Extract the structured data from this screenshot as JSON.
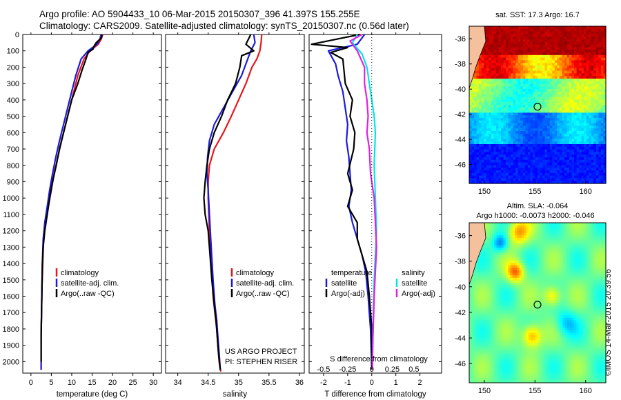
{
  "titles": {
    "line1": "Argo profile: AO 5904433_10 06-Mar-2015 20150307_396 41.397S 155.255E",
    "line2": "Climatology: CARS2009. Satellite-adjusted climatology: synTS_20150307.nc (0.56d later)"
  },
  "side_label": "©IMOS 14-Mar-2015 20:39:56",
  "colors": {
    "climatology": "#e8141a",
    "satellite": "#1a1adc",
    "argo": "#000000",
    "satellite_s": "#00e5e5",
    "argo_s": "#e020e0",
    "land": "#f5c09c"
  },
  "chart_data": [
    {
      "type": "line",
      "id": "temperature",
      "xlabel": "temperature (deg C)",
      "xticks": [
        0,
        5,
        10,
        15,
        20,
        25,
        30
      ],
      "xlim": [
        -2,
        32
      ],
      "ylim": [
        2070,
        0
      ],
      "yticks": [
        0,
        100,
        200,
        300,
        400,
        500,
        600,
        700,
        800,
        900,
        1000,
        1100,
        1200,
        1300,
        1400,
        1500,
        1600,
        1700,
        1800,
        1900,
        2000
      ],
      "legend": [
        "climatology",
        "satellite-adj. clim.",
        "Argo(..raw -QC)"
      ],
      "series": [
        {
          "name": "climatology",
          "color": "#e8141a",
          "x": [
            17.6,
            17.2,
            16.5,
            14.5,
            13.0,
            11.5,
            10.5,
            9.5,
            8.5,
            7.5,
            6.6,
            5.7,
            5.0,
            4.3,
            3.6,
            3.1,
            2.9,
            2.7,
            2.6,
            2.5,
            2.5,
            2.5
          ],
          "y": [
            0,
            30,
            60,
            100,
            150,
            250,
            350,
            450,
            550,
            650,
            750,
            850,
            950,
            1050,
            1150,
            1250,
            1400,
            1550,
            1700,
            1850,
            2000,
            2050
          ]
        },
        {
          "name": "satellite-adj. clim.",
          "color": "#1a1adc",
          "x": [
            17.2,
            16.9,
            16.2,
            14.0,
            12.3,
            11.0,
            10.0,
            9.0,
            8.0,
            7.0,
            6.1,
            5.3,
            4.6,
            4.0,
            3.4,
            3.0,
            2.8,
            2.7,
            2.6,
            2.5,
            2.5,
            2.5
          ],
          "y": [
            0,
            30,
            60,
            100,
            150,
            250,
            350,
            450,
            550,
            650,
            750,
            850,
            950,
            1050,
            1150,
            1250,
            1400,
            1550,
            1700,
            1850,
            2000,
            2050
          ]
        },
        {
          "name": "Argo(..raw -QC)",
          "color": "#000000",
          "x": [
            17.4,
            17.3,
            16.0,
            15.5,
            15.2,
            14.0,
            13.5,
            12.5,
            11.5,
            10.0,
            9.0,
            8.0,
            7.0,
            6.2,
            5.3,
            4.6,
            4.0,
            3.4,
            3.0,
            2.8,
            2.7,
            2.6,
            2.5,
            2.5
          ],
          "y": [
            0,
            20,
            50,
            70,
            90,
            110,
            150,
            220,
            300,
            400,
            500,
            600,
            700,
            800,
            900,
            1000,
            1100,
            1200,
            1300,
            1400,
            1550,
            1700,
            1850,
            2000
          ]
        }
      ]
    },
    {
      "type": "line",
      "id": "salinity",
      "xlabel": "salinity",
      "xticks": [
        34,
        34.5,
        35,
        35.5,
        36
      ],
      "xlim": [
        33.8,
        36.08
      ],
      "ylim": [
        2070,
        0
      ],
      "legend": [
        "climatology",
        "satellite-adj. clim.",
        "Argo(..raw -QC)"
      ],
      "annotation": [
        "US ARGO PROJECT",
        "PI: STEPHEN RISER"
      ],
      "series": [
        {
          "name": "climatology",
          "color": "#e8141a",
          "x": [
            35.38,
            35.37,
            35.35,
            35.3,
            35.22,
            35.12,
            35.0,
            34.88,
            34.75,
            34.6,
            34.52,
            34.5,
            34.5,
            34.52,
            34.55,
            34.58,
            34.61,
            34.64,
            34.66,
            34.68,
            34.7,
            34.71
          ],
          "y": [
            0,
            50,
            100,
            150,
            200,
            300,
            400,
            500,
            600,
            700,
            800,
            900,
            1000,
            1200,
            1400,
            1600,
            1700,
            1800,
            1900,
            2000,
            2050,
            2060
          ]
        },
        {
          "name": "satellite-adj. clim.",
          "color": "#1a1adc",
          "x": [
            35.25,
            35.27,
            35.2,
            35.15,
            35.05,
            34.9,
            34.75,
            34.6,
            34.52,
            34.49,
            34.48,
            34.5,
            34.52,
            34.55,
            34.58,
            34.61,
            34.64,
            34.66,
            34.68,
            34.7
          ],
          "y": [
            0,
            50,
            100,
            150,
            250,
            350,
            450,
            550,
            650,
            750,
            850,
            950,
            1100,
            1300,
            1500,
            1650,
            1750,
            1850,
            1950,
            2050
          ]
        },
        {
          "name": "Argo(..raw -QC)",
          "color": "#000000",
          "x": [
            35.2,
            35.12,
            35.25,
            35.05,
            35.02,
            34.95,
            34.82,
            34.72,
            34.6,
            34.52,
            34.48,
            34.45,
            34.43,
            34.45,
            34.5,
            34.53,
            34.56,
            34.6,
            34.63,
            34.65,
            34.67,
            34.7
          ],
          "y": [
            0,
            60,
            100,
            130,
            200,
            300,
            400,
            500,
            600,
            700,
            800,
            900,
            1000,
            1100,
            1200,
            1350,
            1500,
            1650,
            1750,
            1850,
            1950,
            2050
          ]
        }
      ]
    },
    {
      "type": "line",
      "id": "difference",
      "xlabel": "T difference from climatology",
      "xticks": [
        -2,
        -1,
        0,
        1,
        2
      ],
      "xlim": [
        -2.6,
        2.9
      ],
      "top_label": "S difference from climatology",
      "top_ticks": [
        "-0.5",
        "-0.25",
        "0",
        "0.25",
        "0.5"
      ],
      "ylim": [
        2070,
        0
      ],
      "legend_t": {
        "title": "temperature",
        "entries": [
          "satellite",
          "Argo(-adj)"
        ]
      },
      "legend_s": {
        "title": "salinity",
        "entries": [
          "satellite",
          "Argo(-adj)"
        ]
      },
      "series": [
        {
          "name": "satellite",
          "color": "#1a1adc",
          "x": [
            -0.3,
            -0.6,
            -1.8,
            -1.5,
            -1.4,
            -1.2,
            -1.1,
            -1.0,
            -1.05,
            -0.95,
            -0.9,
            -0.85,
            -0.95,
            -0.8,
            -0.6,
            -0.4,
            -0.25,
            -0.15,
            -0.05,
            0.0
          ],
          "y": [
            0,
            60,
            100,
            180,
            250,
            350,
            450,
            550,
            650,
            750,
            850,
            950,
            1050,
            1150,
            1250,
            1350,
            1450,
            1600,
            1800,
            2050
          ]
        },
        {
          "name": "Argo(-adj)",
          "color": "#000000",
          "x": [
            -0.5,
            -2.5,
            -1.0,
            -1.7,
            -1.2,
            -1.1,
            -0.8,
            -0.9,
            -0.7,
            -0.75,
            -1.0,
            -0.8,
            -1.0,
            -0.6,
            -0.6,
            -0.4,
            -0.2,
            -0.1,
            0.0,
            0.0
          ],
          "y": [
            0,
            60,
            80,
            110,
            150,
            300,
            400,
            500,
            600,
            700,
            850,
            950,
            1050,
            1150,
            1250,
            1350,
            1450,
            1600,
            1800,
            2050
          ]
        },
        {
          "name": "satellite S",
          "color": "#00e5e5",
          "x": [
            -0.6,
            -0.8,
            -0.4,
            -0.2,
            -0.1,
            0.0,
            0.1,
            0.15,
            0.1,
            0.15,
            0.2,
            0.1,
            0.05,
            0.02
          ],
          "y": [
            0,
            50,
            120,
            200,
            300,
            400,
            500,
            600,
            800,
            1000,
            1200,
            1500,
            1800,
            2050
          ]
        },
        {
          "name": "Argo(-adj) S",
          "color": "#e020e0",
          "x": [
            -0.4,
            -0.9,
            -0.6,
            -0.3,
            -0.3,
            -0.2,
            -0.15,
            -0.2,
            -0.1,
            -0.05,
            0.1,
            0.2,
            0.1,
            0.05,
            0.02
          ],
          "y": [
            0,
            40,
            100,
            200,
            300,
            400,
            500,
            600,
            700,
            850,
            1000,
            1300,
            1600,
            1850,
            2050
          ]
        }
      ]
    },
    {
      "type": "heatmap",
      "id": "sst_map",
      "title": "sat. SST: 17.3  Argo: 16.7",
      "xticks": [
        150,
        155,
        160
      ],
      "yticks": [
        -36,
        -38,
        -40,
        -42,
        -44,
        -46
      ],
      "xlim": [
        148.5,
        162
      ],
      "ylim": [
        -47.5,
        -35
      ],
      "marker": [
        155.25,
        -41.4
      ]
    },
    {
      "type": "heatmap",
      "id": "sla_map",
      "title_line1": "Altim. SLA: -0.064",
      "title_line2": "Argo h1000: -0.0073  h2000: -0.046",
      "xticks": [
        150,
        155,
        160
      ],
      "yticks": [
        -36,
        -38,
        -40,
        -42,
        -44,
        -46
      ],
      "xlim": [
        148.5,
        162
      ],
      "ylim": [
        -47.5,
        -35
      ],
      "marker": [
        155.25,
        -41.4
      ]
    }
  ]
}
